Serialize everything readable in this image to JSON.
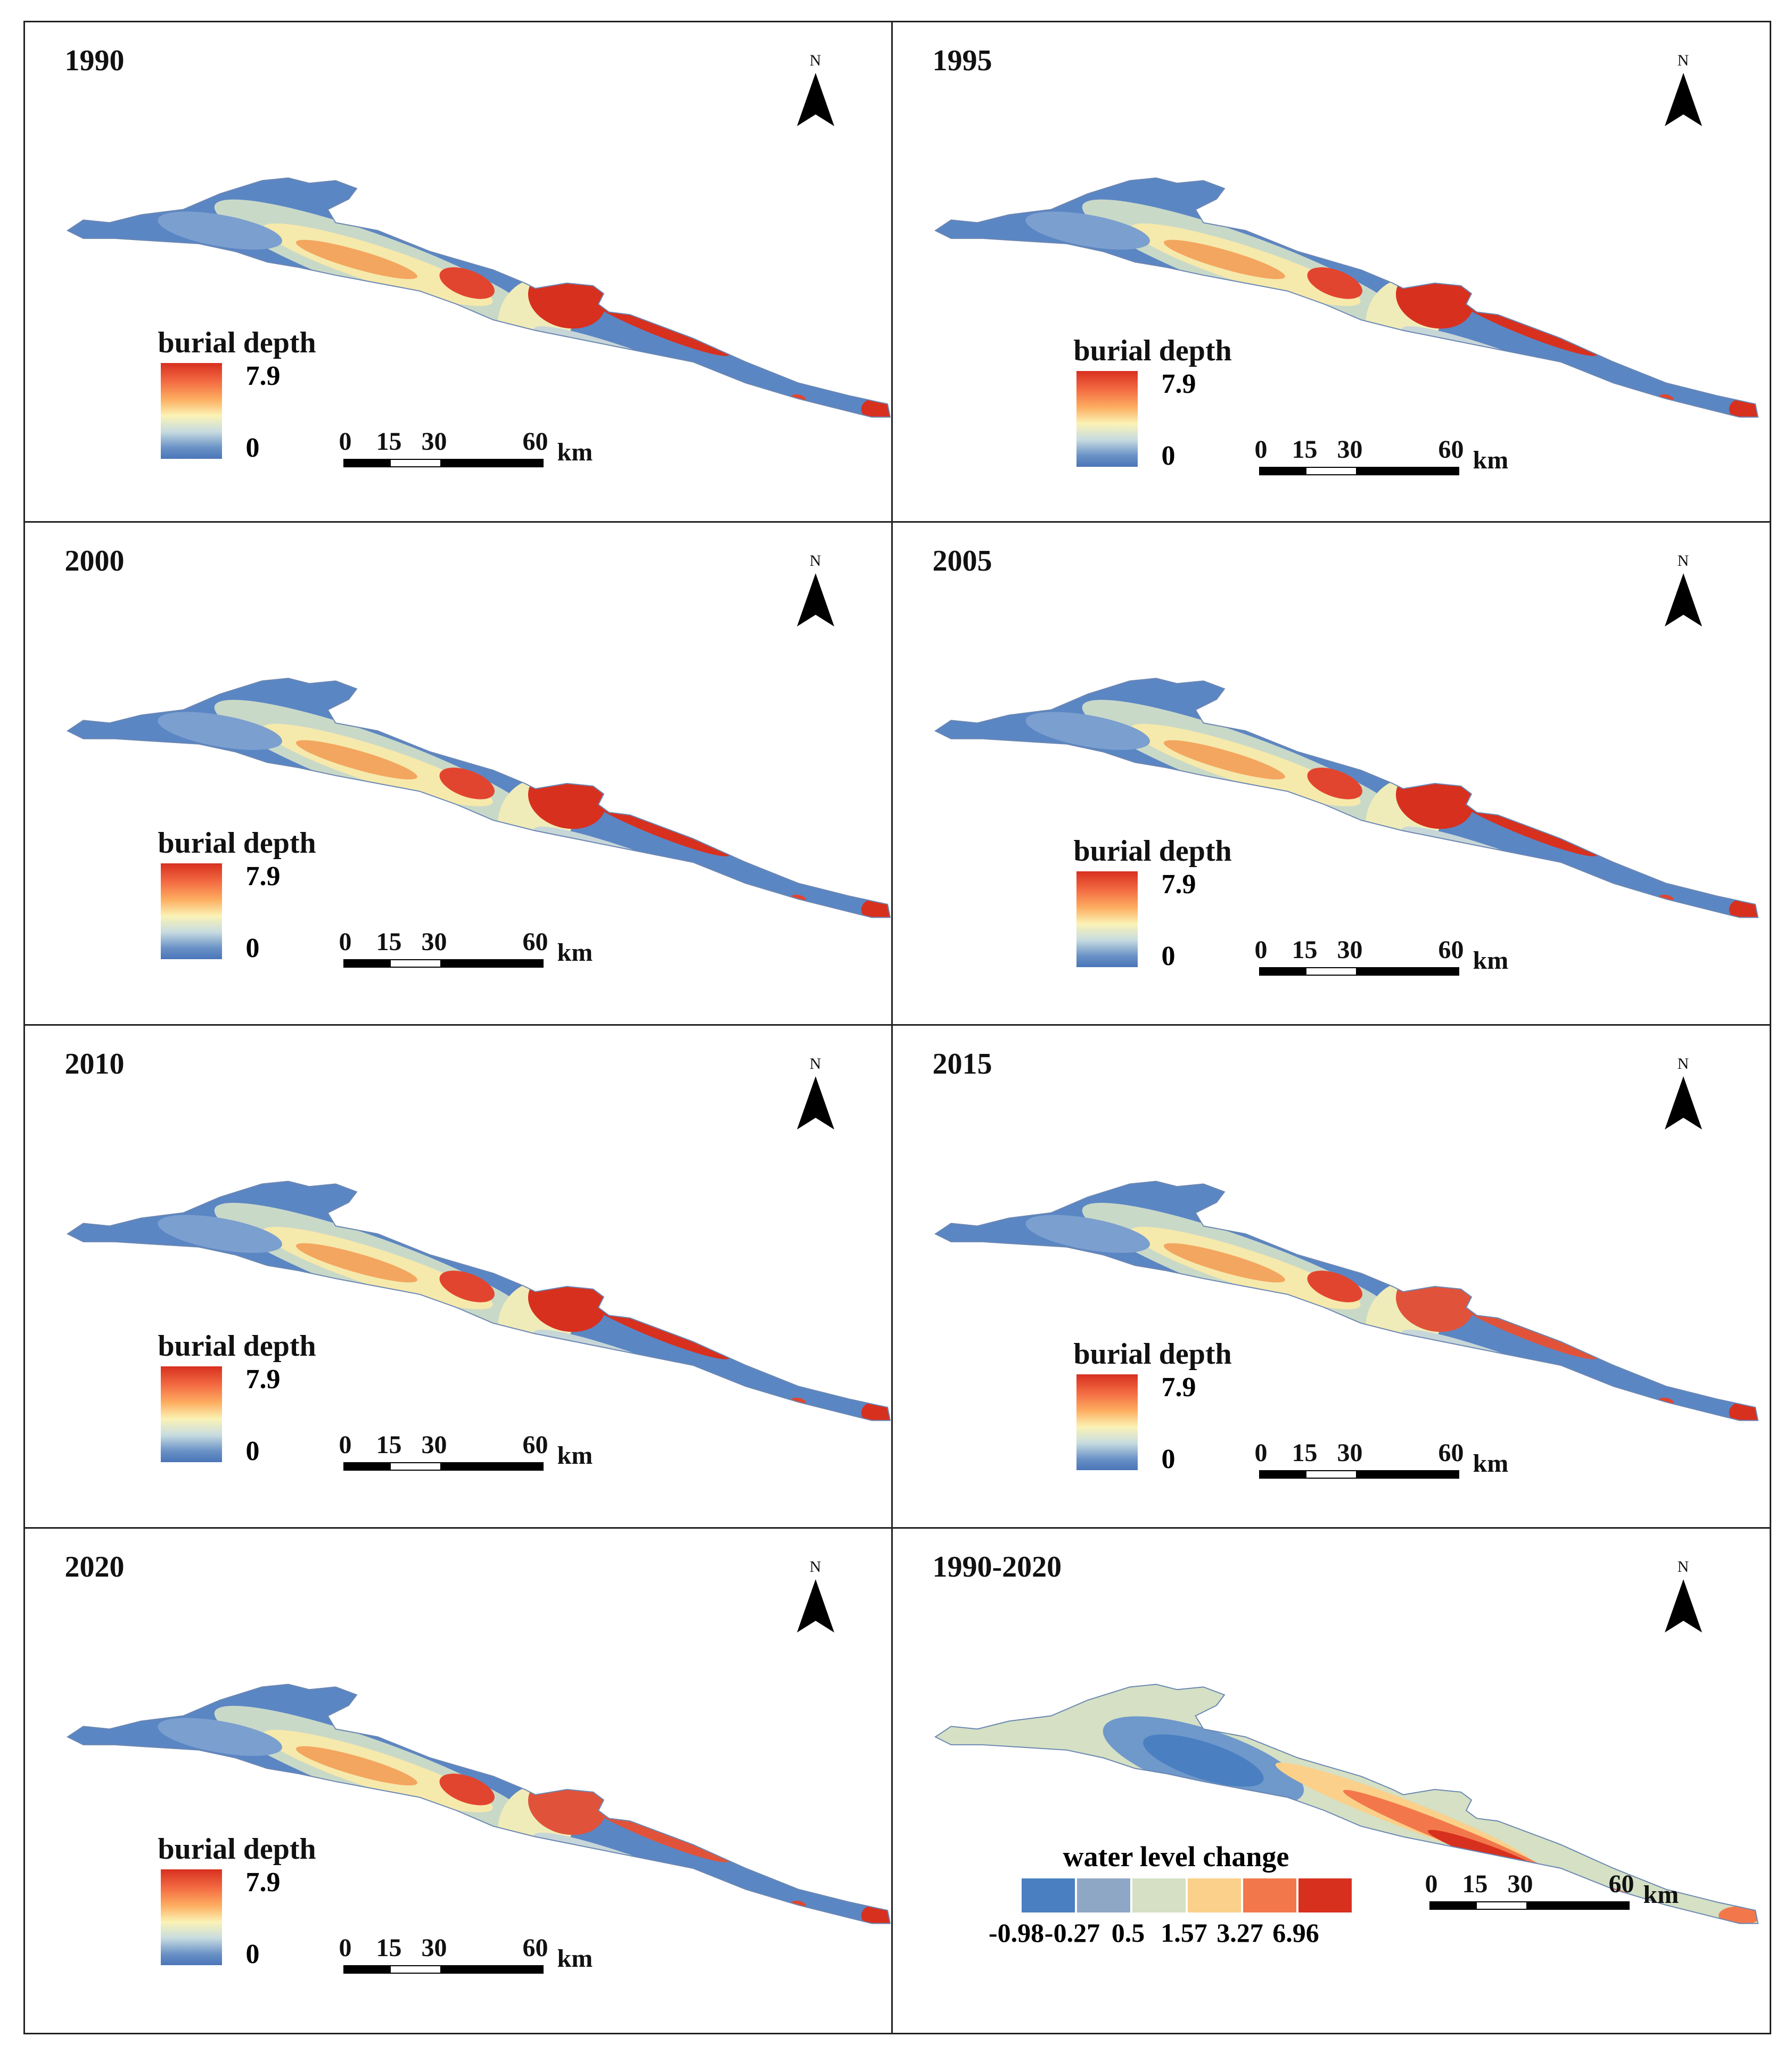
{
  "panels": [
    {
      "title": "1990",
      "kind": "depth",
      "variant": 0
    },
    {
      "title": "1995",
      "kind": "depth",
      "variant": 1
    },
    {
      "title": "2000",
      "kind": "depth",
      "variant": 0
    },
    {
      "title": "2005",
      "kind": "depth",
      "variant": 1
    },
    {
      "title": "2010",
      "kind": "depth",
      "variant": 2
    },
    {
      "title": "2015",
      "kind": "depth",
      "variant": 3
    },
    {
      "title": "2020",
      "kind": "depth",
      "variant": 3
    },
    {
      "title": "1990-2020",
      "kind": "change",
      "variant": 4
    }
  ],
  "north_label": "N",
  "depth_legend": {
    "title": "burial depth",
    "max_label": "7.9",
    "min_label": "0",
    "colors": {
      "high": "#d7301f",
      "mid": "#fbf3b6",
      "low": "#4a75b8"
    }
  },
  "scale_bar": {
    "labels": [
      "0",
      "15",
      "30",
      "60"
    ],
    "unit": "km"
  },
  "change_legend": {
    "title": "water level change",
    "breaks": [
      "-0.98",
      "-0.27",
      "0.5",
      "1.57",
      "3.27",
      "6.96"
    ],
    "colors": [
      "#4a7fc1",
      "#8ea7c4",
      "#d5e0c4",
      "#fbd08a",
      "#f2784b",
      "#d7301f"
    ]
  }
}
